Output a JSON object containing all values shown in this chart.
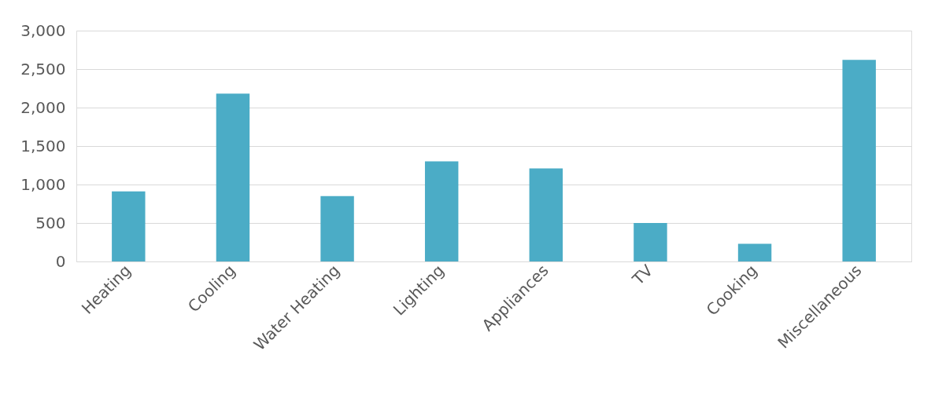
{
  "chart_data": {
    "type": "bar",
    "categories": [
      "Heating",
      "Cooling",
      "Water Heating",
      "Lighting",
      "Appliances",
      "TV",
      "Cooking",
      "Miscellaneous"
    ],
    "values": [
      910,
      2180,
      850,
      1300,
      1210,
      500,
      230,
      2620
    ],
    "color": "#4bacc6",
    "ylim": [
      0,
      3000
    ],
    "yticks": [
      0,
      500,
      {
        "value": 1000,
        "label": "1,000"
      },
      {
        "value": 1500,
        "label": "1,500"
      },
      {
        "value": 2000,
        "label": "2,000"
      },
      {
        "value": 2500,
        "label": "2,500"
      },
      {
        "value": 3000,
        "label": "3,000"
      }
    ],
    "grid": "y"
  }
}
